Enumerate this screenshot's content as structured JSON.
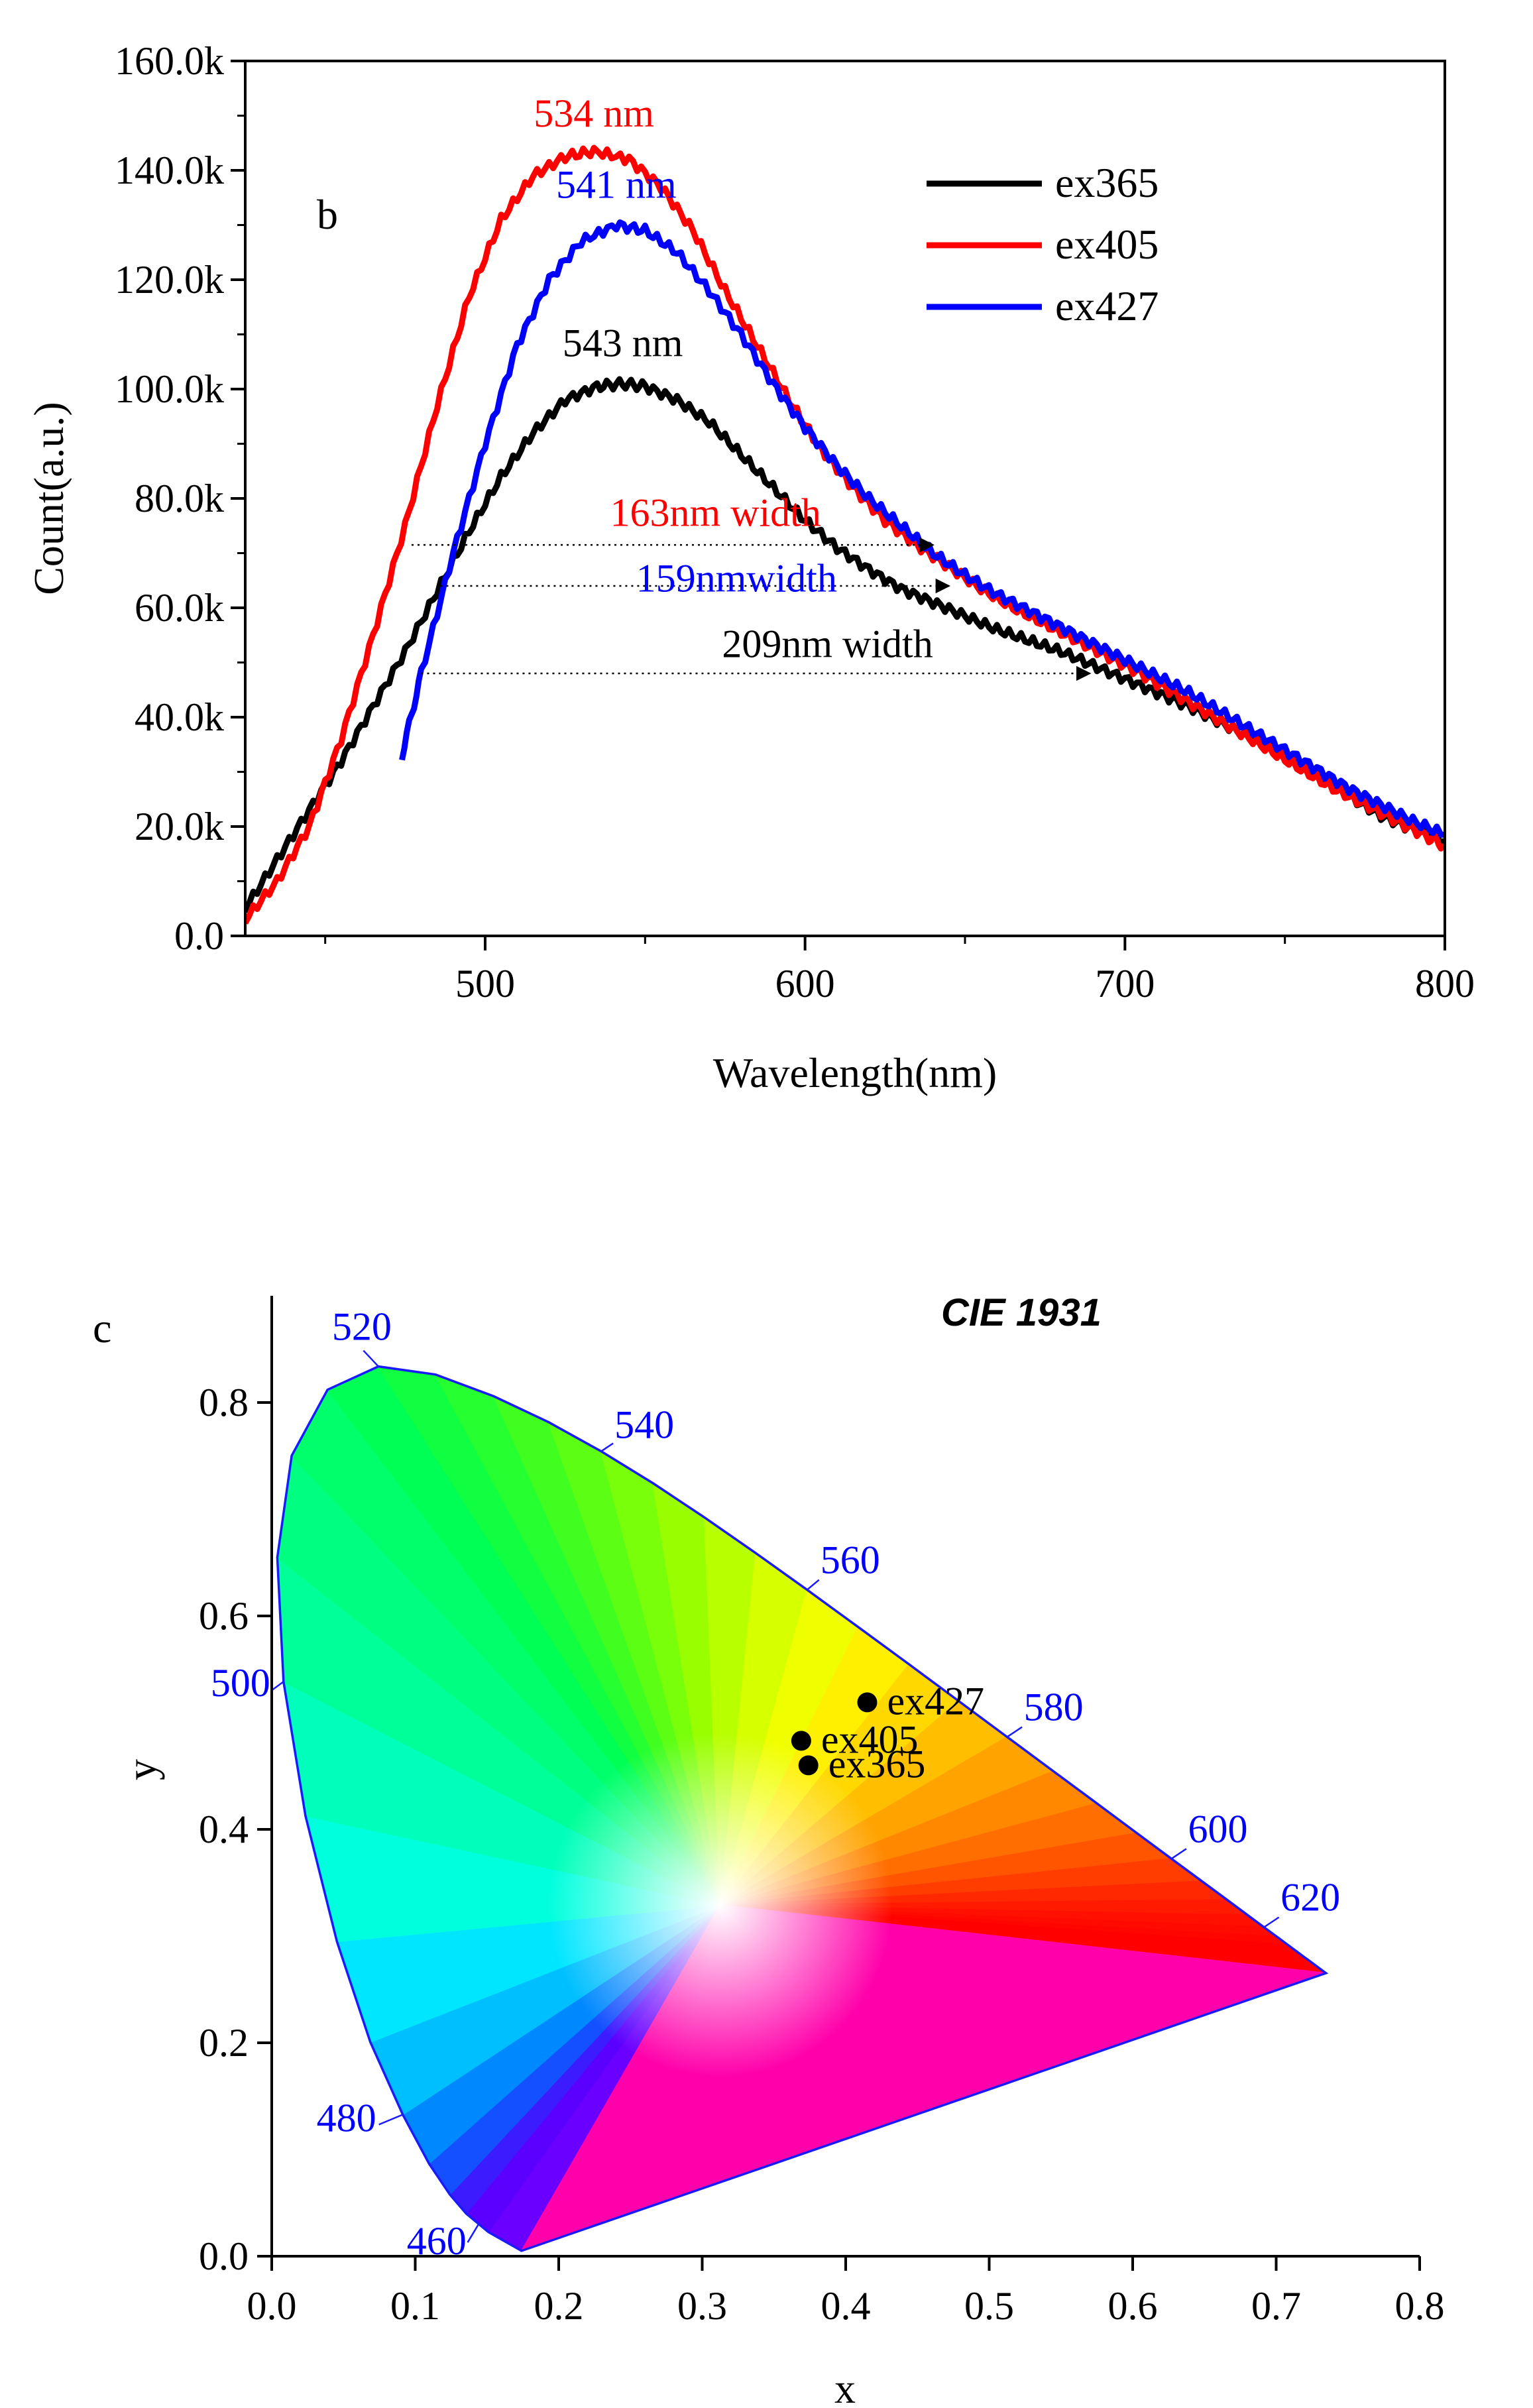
{
  "chart_data": [
    {
      "type": "line",
      "panel_label": "b",
      "xlabel": "Wavelength(nm)",
      "ylabel": "Count(a.u.)",
      "xlim": [
        425,
        800
      ],
      "ylim": [
        0,
        160000
      ],
      "x_ticks": [
        500,
        600,
        700,
        800
      ],
      "x_tick_labels": [
        "500",
        "600",
        "700",
        "800"
      ],
      "y_ticks": [
        0,
        20000,
        40000,
        60000,
        80000,
        100000,
        120000,
        140000,
        160000
      ],
      "y_tick_labels": [
        "0.0",
        "20.0k",
        "40.0k",
        "60.0k",
        "80.0k",
        "100.0k",
        "120.0k",
        "140.0k",
        "160.0k"
      ],
      "legend_position": "top-right",
      "series": [
        {
          "name": "ex365",
          "color": "#000000",
          "x": [
            425,
            435,
            445,
            455,
            465,
            475,
            485,
            495,
            505,
            515,
            525,
            535,
            543,
            550,
            560,
            570,
            580,
            590,
            600,
            610,
            620,
            630,
            640,
            650,
            660,
            670,
            680,
            690,
            700,
            710,
            720,
            730,
            740,
            750,
            760,
            770,
            780,
            790,
            800
          ],
          "y": [
            5000,
            14000,
            23000,
            32000,
            42000,
            52000,
            63000,
            74000,
            84000,
            92000,
            98000,
            100500,
            101000,
            100500,
            98000,
            94000,
            88000,
            82000,
            76000,
            71000,
            67000,
            63500,
            61000,
            58500,
            56000,
            54000,
            52000,
            49500,
            47000,
            44500,
            42000,
            39000,
            36000,
            32500,
            29000,
            25500,
            22000,
            19500,
            17500
          ]
        },
        {
          "name": "ex405",
          "color": "#ff0000",
          "x": [
            425,
            435,
            445,
            455,
            465,
            475,
            485,
            495,
            505,
            515,
            525,
            534,
            545,
            555,
            565,
            575,
            585,
            595,
            605,
            615,
            625,
            635,
            645,
            655,
            665,
            675,
            685,
            695,
            705,
            715,
            725,
            735,
            745,
            755,
            765,
            775,
            785,
            795,
            800
          ],
          "y": [
            3000,
            10000,
            20000,
            36000,
            55000,
            75000,
            97000,
            117000,
            131000,
            139000,
            142500,
            143500,
            142000,
            137000,
            129000,
            118000,
            108000,
            98000,
            89000,
            82000,
            76000,
            71500,
            67500,
            63500,
            60000,
            57000,
            54000,
            51000,
            48000,
            44500,
            41000,
            37500,
            34000,
            30500,
            27000,
            24000,
            21000,
            18000,
            16500
          ]
        },
        {
          "name": "ex427",
          "color": "#0000ff",
          "x": [
            474,
            480,
            490,
            500,
            510,
            520,
            530,
            541,
            550,
            560,
            570,
            580,
            590,
            600,
            610,
            620,
            630,
            640,
            650,
            660,
            670,
            680,
            690,
            700,
            710,
            720,
            730,
            740,
            750,
            760,
            770,
            780,
            790,
            800
          ],
          "y": [
            33000,
            48000,
            70000,
            90000,
            108000,
            120000,
            127000,
            130000,
            129000,
            125000,
            118000,
            110000,
            101000,
            93000,
            86000,
            80000,
            75000,
            70000,
            66000,
            62500,
            59500,
            56500,
            53500,
            50500,
            47500,
            44500,
            41000,
            37500,
            34000,
            30500,
            27000,
            24000,
            21000,
            18500
          ]
        }
      ],
      "annotations": {
        "peaks": [
          {
            "text": "534 nm",
            "color": "#ff0000",
            "x": 534,
            "y": 148000
          },
          {
            "text": "541 nm",
            "color": "#0000ff",
            "x": 541,
            "y": 135000
          },
          {
            "text": "543 nm",
            "color": "#000000",
            "x": 543,
            "y": 106000
          }
        ],
        "widths": [
          {
            "text": "163nm width",
            "color": "#ff0000",
            "x_start": 477,
            "x_end": 640,
            "y": 71500,
            "label_x": 605,
            "label_y": 75000
          },
          {
            "text": "159nmwidth",
            "color": "#0000ff",
            "x_start": 486,
            "x_end": 645,
            "y": 64000,
            "label_x": 610,
            "label_y": 63000
          },
          {
            "text": "209nm width",
            "color": "#000000",
            "x_start": 480,
            "x_end": 689,
            "y": 48000,
            "label_x": 640,
            "label_y": 51000
          }
        ]
      }
    },
    {
      "type": "scatter",
      "panel_label": "c",
      "title": "CIE 1931",
      "xlabel": "x",
      "ylabel": "y",
      "xlim": [
        0.0,
        0.8
      ],
      "ylim": [
        0.0,
        0.9
      ],
      "x_ticks": [
        0.0,
        0.1,
        0.2,
        0.3,
        0.4,
        0.5,
        0.6,
        0.7,
        0.8
      ],
      "x_tick_labels": [
        "0.0",
        "0.1",
        "0.2",
        "0.3",
        "0.4",
        "0.5",
        "0.6",
        "0.7",
        "0.8"
      ],
      "y_ticks": [
        0.0,
        0.2,
        0.4,
        0.6,
        0.8
      ],
      "y_tick_labels": [
        "0.0",
        "0.2",
        "0.4",
        "0.6",
        "0.8"
      ],
      "locus": [
        [
          0.1741,
          0.005
        ],
        [
          0.151,
          0.0227
        ],
        [
          0.1355,
          0.0399
        ],
        [
          0.1241,
          0.0578
        ],
        [
          0.1096,
          0.0868
        ],
        [
          0.0913,
          0.1327
        ],
        [
          0.0687,
          0.2007
        ],
        [
          0.0454,
          0.295
        ],
        [
          0.0235,
          0.4127
        ],
        [
          0.0082,
          0.5384
        ],
        [
          0.0039,
          0.6548
        ],
        [
          0.0139,
          0.7502
        ],
        [
          0.0389,
          0.812
        ],
        [
          0.0743,
          0.8338
        ],
        [
          0.1142,
          0.8262
        ],
        [
          0.1547,
          0.8059
        ],
        [
          0.1929,
          0.7816
        ],
        [
          0.2296,
          0.7543
        ],
        [
          0.2658,
          0.7243
        ],
        [
          0.3016,
          0.6923
        ],
        [
          0.3373,
          0.6589
        ],
        [
          0.3731,
          0.6245
        ],
        [
          0.4087,
          0.5896
        ],
        [
          0.4441,
          0.5547
        ],
        [
          0.4788,
          0.5202
        ],
        [
          0.5125,
          0.4866
        ],
        [
          0.5448,
          0.4544
        ],
        [
          0.5752,
          0.4242
        ],
        [
          0.6029,
          0.3965
        ],
        [
          0.627,
          0.3725
        ],
        [
          0.6482,
          0.3514
        ],
        [
          0.6658,
          0.334
        ],
        [
          0.6801,
          0.3197
        ],
        [
          0.6915,
          0.3083
        ],
        [
          0.7006,
          0.2993
        ],
        [
          0.7079,
          0.292
        ],
        [
          0.714,
          0.2859
        ],
        [
          0.719,
          0.2809
        ],
        [
          0.723,
          0.277
        ],
        [
          0.726,
          0.274
        ],
        [
          0.7347,
          0.2653
        ]
      ],
      "wavelength_labels": [
        {
          "text": "460",
          "x": 0.144,
          "y": 0.0297
        },
        {
          "text": "480",
          "x": 0.0913,
          "y": 0.1327
        },
        {
          "text": "500",
          "x": 0.0082,
          "y": 0.5384
        },
        {
          "text": "520",
          "x": 0.0743,
          "y": 0.8338
        },
        {
          "text": "540",
          "x": 0.2296,
          "y": 0.7543
        },
        {
          "text": "560",
          "x": 0.3731,
          "y": 0.6245
        },
        {
          "text": "580",
          "x": 0.5125,
          "y": 0.4866
        },
        {
          "text": "600",
          "x": 0.627,
          "y": 0.3725
        },
        {
          "text": "620",
          "x": 0.6915,
          "y": 0.3083
        }
      ],
      "label_color": "#0000ff",
      "points": [
        {
          "name": "ex427",
          "x": 0.415,
          "y": 0.519
        },
        {
          "name": "ex405",
          "x": 0.369,
          "y": 0.483
        },
        {
          "name": "ex365",
          "x": 0.374,
          "y": 0.46
        }
      ]
    }
  ]
}
